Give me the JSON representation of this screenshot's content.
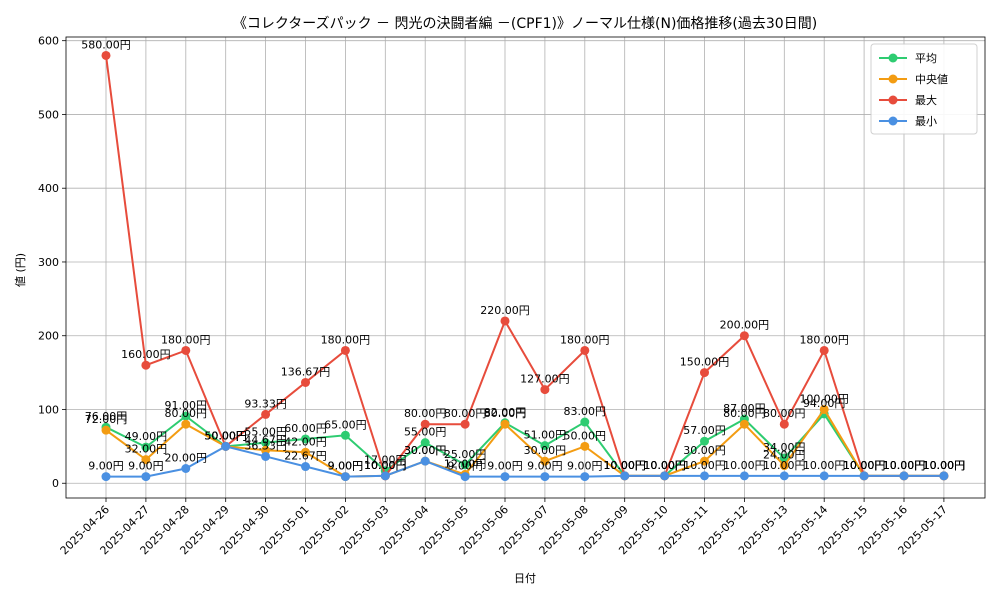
{
  "chart_data": {
    "type": "line",
    "title": "《コレクターズパック － 閃光の決闘者編 －(CPF1)》ノーマル仕様(N)価格推移(過去30日間)",
    "xlabel": "日付",
    "ylabel": "値 (円)",
    "ylim": [
      -20,
      605
    ],
    "yticks": [
      0,
      100,
      200,
      300,
      400,
      500,
      600
    ],
    "grid": true,
    "legend_position": "top-right",
    "label_suffix": "円",
    "categories": [
      "2025-04-26",
      "2025-04-27",
      "2025-04-28",
      "2025-04-29",
      "2025-04-30",
      "2025-05-01",
      "2025-05-02",
      "2025-05-03",
      "2025-05-04",
      "2025-05-05",
      "2025-05-06",
      "2025-05-07",
      "2025-05-08",
      "2025-05-09",
      "2025-05-10",
      "2025-05-11",
      "2025-05-12",
      "2025-05-13",
      "2025-05-14",
      "2025-05-15",
      "2025-05-16",
      "2025-05-17"
    ],
    "series": [
      {
        "name": "平均",
        "color": "#2ecc71",
        "values": [
          76,
          49,
          91,
          50,
          55,
          60,
          65,
          17,
          55,
          25,
          82,
          51,
          83,
          10,
          10,
          57,
          87,
          34,
          94,
          10,
          10,
          10
        ]
      },
      {
        "name": "中央値",
        "color": "#f39c12",
        "values": [
          72,
          32,
          80,
          50,
          44.67,
          42,
          9,
          10,
          30,
          12,
          80,
          30,
          50,
          10,
          10,
          30,
          80,
          24,
          100,
          10,
          10,
          10
        ]
      },
      {
        "name": "最大",
        "color": "#e74c3c",
        "values": [
          580,
          160,
          180,
          50,
          93.33,
          136.67,
          180,
          10,
          80,
          80,
          220,
          127,
          180,
          10,
          10,
          150,
          200,
          80,
          180,
          10,
          10,
          10
        ]
      },
      {
        "name": "最小",
        "color": "#4a90e2",
        "values": [
          9,
          9,
          20,
          50,
          36.33,
          22.67,
          9,
          10,
          30,
          9,
          9,
          9,
          9,
          10,
          10,
          10,
          10,
          10,
          10,
          10,
          10,
          10
        ]
      }
    ]
  }
}
